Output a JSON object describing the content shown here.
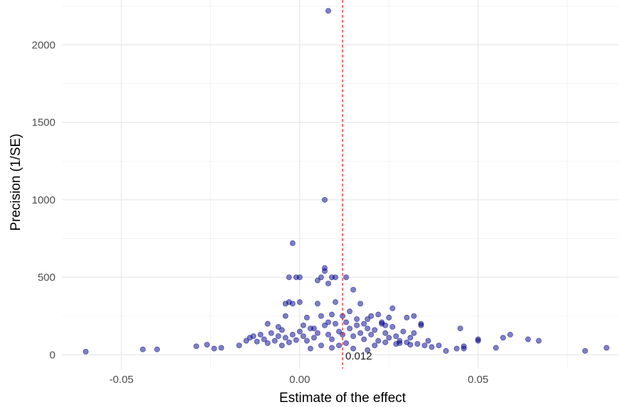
{
  "chart_data": {
    "type": "scatter",
    "title": "",
    "xlabel": "Estimate of the effect",
    "ylabel": "Precision (1/SE)",
    "xlim": [
      -0.0665,
      0.0895
    ],
    "ylim": [
      -90,
      2290
    ],
    "x_ticks": [
      -0.05,
      0.0,
      0.05
    ],
    "x_tick_labels": [
      "-0.05",
      "0.00",
      "0.05"
    ],
    "y_ticks": [
      0,
      500,
      1000,
      1500,
      2000
    ],
    "y_tick_labels": [
      "0",
      "500",
      "1000",
      "1500",
      "2000"
    ],
    "grid": true,
    "legend": "none",
    "point_color": "#00008B",
    "reference_line": {
      "x": 0.012,
      "color": "#e41a1c",
      "style": "dashed",
      "label": "0.012"
    },
    "points": [
      [
        -0.06,
        20
      ],
      [
        -0.044,
        35
      ],
      [
        -0.04,
        35
      ],
      [
        -0.029,
        55
      ],
      [
        -0.026,
        65
      ],
      [
        -0.024,
        40
      ],
      [
        -0.022,
        45
      ],
      [
        -0.017,
        60
      ],
      [
        -0.015,
        90
      ],
      [
        -0.014,
        110
      ],
      [
        -0.013,
        120
      ],
      [
        -0.012,
        85
      ],
      [
        -0.011,
        130
      ],
      [
        -0.01,
        100
      ],
      [
        -0.009,
        75
      ],
      [
        -0.008,
        140
      ],
      [
        -0.007,
        90
      ],
      [
        -0.006,
        120
      ],
      [
        -0.005,
        160
      ],
      [
        -0.004,
        110
      ],
      [
        -0.003,
        80
      ],
      [
        -0.002,
        130
      ],
      [
        -0.001,
        95
      ],
      [
        0.0,
        150
      ],
      [
        0.001,
        120
      ],
      [
        0.002,
        90
      ],
      [
        0.003,
        170
      ],
      [
        0.004,
        110
      ],
      [
        0.005,
        140
      ],
      [
        0.006,
        60
      ],
      [
        0.007,
        190
      ],
      [
        0.008,
        130
      ],
      [
        0.009,
        100
      ],
      [
        0.01,
        200
      ],
      [
        0.011,
        150
      ],
      [
        0.012,
        130
      ],
      [
        0.013,
        210
      ],
      [
        0.014,
        170
      ],
      [
        0.015,
        120
      ],
      [
        0.016,
        190
      ],
      [
        0.017,
        140
      ],
      [
        0.018,
        100
      ],
      [
        0.019,
        170
      ],
      [
        0.02,
        130
      ],
      [
        0.021,
        160
      ],
      [
        0.022,
        90
      ],
      [
        0.023,
        200
      ],
      [
        0.024,
        140
      ],
      [
        0.025,
        110
      ],
      [
        0.026,
        180
      ],
      [
        0.027,
        120
      ],
      [
        0.028,
        90
      ],
      [
        0.029,
        150
      ],
      [
        0.03,
        80
      ],
      [
        0.031,
        110
      ],
      [
        0.032,
        140
      ],
      [
        0.033,
        70
      ],
      [
        0.034,
        190
      ],
      [
        0.035,
        60
      ],
      [
        0.036,
        90
      ],
      [
        0.037,
        50
      ],
      [
        0.039,
        60
      ],
      [
        0.041,
        25
      ],
      [
        0.044,
        40
      ],
      [
        0.045,
        170
      ],
      [
        0.046,
        55
      ],
      [
        0.046,
        40
      ],
      [
        0.05,
        90
      ],
      [
        0.05,
        100
      ],
      [
        0.055,
        45
      ],
      [
        0.057,
        110
      ],
      [
        0.059,
        130
      ],
      [
        0.064,
        100
      ],
      [
        0.067,
        90
      ],
      [
        0.08,
        25
      ],
      [
        0.086,
        45
      ],
      [
        -0.004,
        330
      ],
      [
        -0.003,
        340
      ],
      [
        -0.002,
        330
      ],
      [
        0.0,
        340
      ],
      [
        0.005,
        330
      ],
      [
        0.01,
        340
      ],
      [
        0.017,
        330
      ],
      [
        0.012,
        250
      ],
      [
        0.014,
        280
      ],
      [
        0.016,
        230
      ],
      [
        0.02,
        250
      ],
      [
        0.022,
        260
      ],
      [
        0.026,
        300
      ],
      [
        0.03,
        240
      ],
      [
        -0.004,
        250
      ],
      [
        0.002,
        240
      ],
      [
        0.006,
        250
      ],
      [
        0.009,
        260
      ],
      [
        -0.003,
        500
      ],
      [
        -0.001,
        500
      ],
      [
        0.0,
        500
      ],
      [
        0.005,
        480
      ],
      [
        0.006,
        500
      ],
      [
        0.009,
        500
      ],
      [
        0.01,
        500
      ],
      [
        0.013,
        500
      ],
      [
        0.007,
        540
      ],
      [
        0.007,
        560
      ],
      [
        0.008,
        460
      ],
      [
        0.015,
        420
      ],
      [
        -0.002,
        720
      ],
      [
        0.007,
        1000
      ],
      [
        0.008,
        2220
      ],
      [
        -0.005,
        60
      ],
      [
        0.003,
        40
      ],
      [
        0.009,
        45
      ],
      [
        0.011,
        60
      ],
      [
        0.013,
        75
      ],
      [
        0.015,
        40
      ],
      [
        0.019,
        30
      ],
      [
        0.021,
        60
      ],
      [
        0.024,
        80
      ],
      [
        0.027,
        70
      ],
      [
        0.028,
        75
      ],
      [
        0.031,
        65
      ],
      [
        -0.009,
        200
      ],
      [
        -0.006,
        180
      ],
      [
        0.001,
        190
      ],
      [
        0.004,
        170
      ],
      [
        0.008,
        210
      ],
      [
        0.018,
        200
      ],
      [
        0.023,
        210
      ],
      [
        0.025,
        240
      ],
      [
        0.032,
        250
      ],
      [
        0.034,
        200
      ],
      [
        0.019,
        230
      ],
      [
        0.024,
        190
      ]
    ]
  }
}
